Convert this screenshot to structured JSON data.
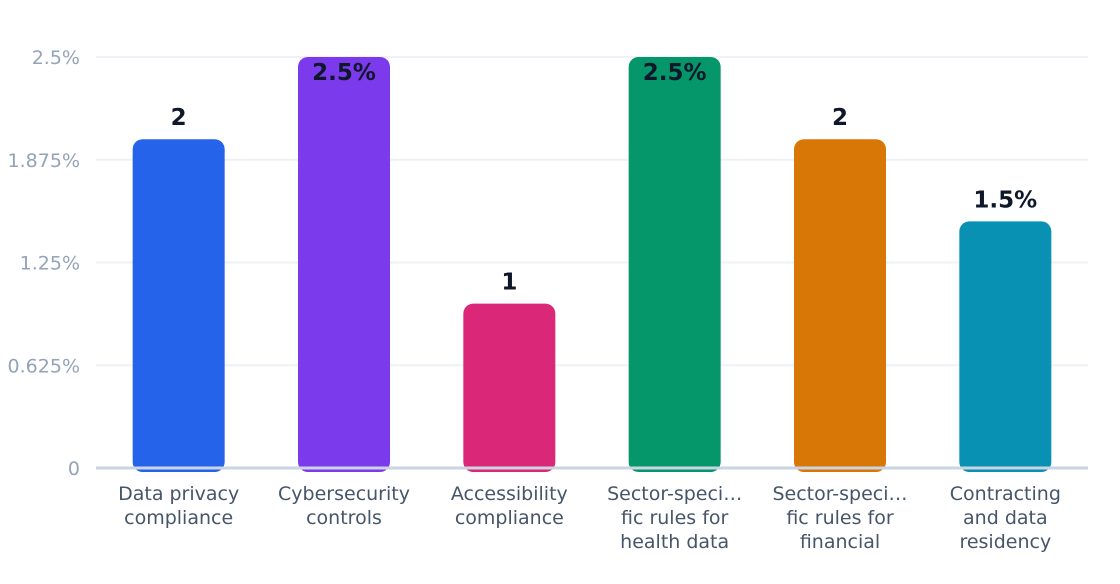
{
  "chart_data": {
    "type": "bar",
    "title": "",
    "xlabel": "",
    "ylabel": "",
    "ylim": [
      0,
      2.5
    ],
    "grid": true,
    "legend": "none",
    "y_ticks": [
      "0",
      "0.625%",
      "1.25%",
      "1.875%",
      "2.5%"
    ],
    "y_tick_values": [
      0,
      0.625,
      1.25,
      1.875,
      2.5
    ],
    "categories": [
      [
        "Data privacy",
        "compliance"
      ],
      [
        "Cybersecurity",
        "controls"
      ],
      [
        "Accessibility",
        "compliance"
      ],
      [
        "Sector-speci…",
        "fic rules for",
        "health data"
      ],
      [
        "Sector-speci…",
        "fic rules for",
        "financial"
      ],
      [
        "Contracting",
        "and data",
        "residency"
      ]
    ],
    "values": [
      2,
      2.5,
      1,
      2.5,
      2,
      1.5
    ],
    "data_labels": [
      "2",
      "2.5%",
      "1",
      "2.5%",
      "2",
      "1.5%"
    ],
    "colors": [
      "#2563eb",
      "#7c3aed",
      "#db2777",
      "#059669",
      "#d97706",
      "#0891b2"
    ]
  }
}
